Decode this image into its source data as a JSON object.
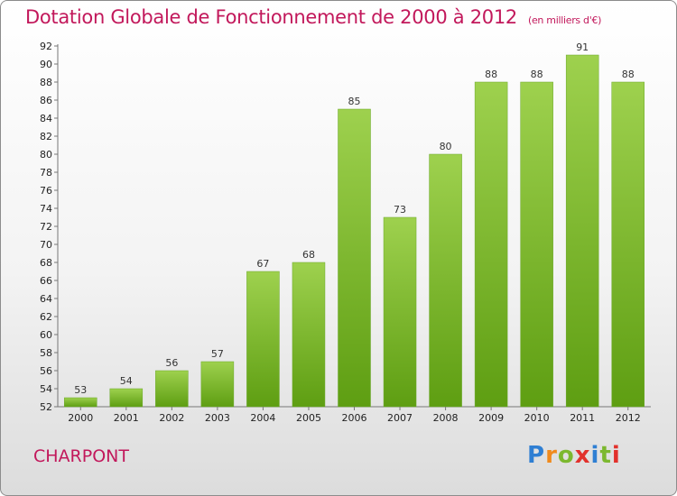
{
  "chart_data": {
    "type": "bar",
    "title": "Dotation Globale de Fonctionnement de 2000 à 2012",
    "unit_label": "(en milliers d'€)",
    "categories": [
      "2000",
      "2001",
      "2002",
      "2003",
      "2004",
      "2005",
      "2006",
      "2007",
      "2008",
      "2009",
      "2010",
      "2011",
      "2012"
    ],
    "values": [
      53,
      54,
      56,
      57,
      67,
      68,
      85,
      73,
      80,
      88,
      88,
      91,
      88
    ],
    "ylim": [
      52,
      92
    ],
    "ytick_step": 2,
    "grid": false,
    "bar_color": "#7cbf2f"
  },
  "footer": {
    "place_name": "CHARPONT",
    "logo_text": "Proxiti"
  }
}
